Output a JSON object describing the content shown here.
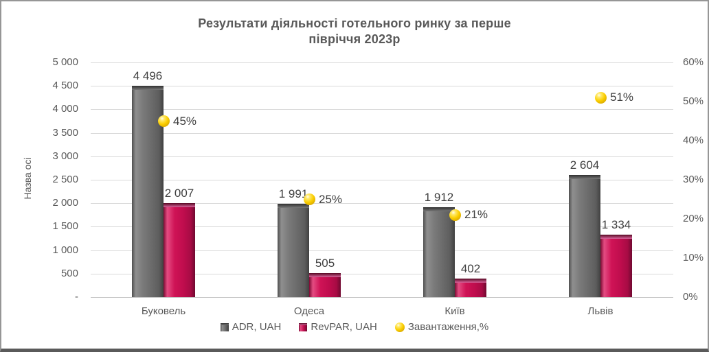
{
  "window": {
    "background": "#ffffff",
    "border_color": "#969696",
    "bottom_edge_color": "#5a5a5a"
  },
  "chart_data": {
    "type": "bar",
    "title": "Результати діяльності готельного ринку за перше півріччя 2023р",
    "title_lines": [
      "Результати діяльності готельного ринку за перше",
      "півріччя 2023р"
    ],
    "categories": [
      "Буковель",
      "Одеса",
      "Київ",
      "Львів"
    ],
    "series": [
      {
        "name": "ADR, UAH",
        "type": "bar",
        "axis": "left",
        "color": "#6e6e6e",
        "values": [
          4496,
          1991,
          1912,
          2604
        ],
        "data_labels": [
          "4 496",
          "1 991",
          "1 912",
          "2 604"
        ]
      },
      {
        "name": "RevPAR, UAH",
        "type": "bar",
        "axis": "left",
        "color": "#c00d4e",
        "values": [
          2007,
          505,
          402,
          1334
        ],
        "data_labels": [
          "2 007",
          "505",
          "402",
          "1 334"
        ]
      },
      {
        "name": "Завантаження,%",
        "type": "scatter",
        "axis": "right",
        "color": "#f5c400",
        "values": [
          45,
          25,
          21,
          51
        ],
        "data_labels": [
          "45%",
          "25%",
          "21%",
          "51%"
        ]
      }
    ],
    "left_axis": {
      "title": "Назва осі",
      "min": 0,
      "max": 5000,
      "step": 500,
      "tick_labels_top_to_bottom": [
        "5 000",
        "4 500",
        "4 000",
        "3 500",
        "3 000",
        "2 500",
        "2 000",
        "1 500",
        "1 000",
        "500",
        "-"
      ]
    },
    "right_axis": {
      "min": 0,
      "max": 60,
      "step": 10,
      "unit": "%",
      "tick_labels_top_to_bottom": [
        "60%",
        "50%",
        "40%",
        "30%",
        "20%",
        "10%",
        "0%"
      ]
    },
    "grid": true,
    "legend_position": "bottom"
  },
  "colors": {
    "title_text": "#595959",
    "axis_text": "#595959",
    "data_label_text": "#3f3f3f",
    "gridline": "#d9d9d9",
    "bar_gray": "#6e6e6e",
    "bar_crimson": "#c00d4e",
    "marker_yellow": "#f5c400"
  }
}
